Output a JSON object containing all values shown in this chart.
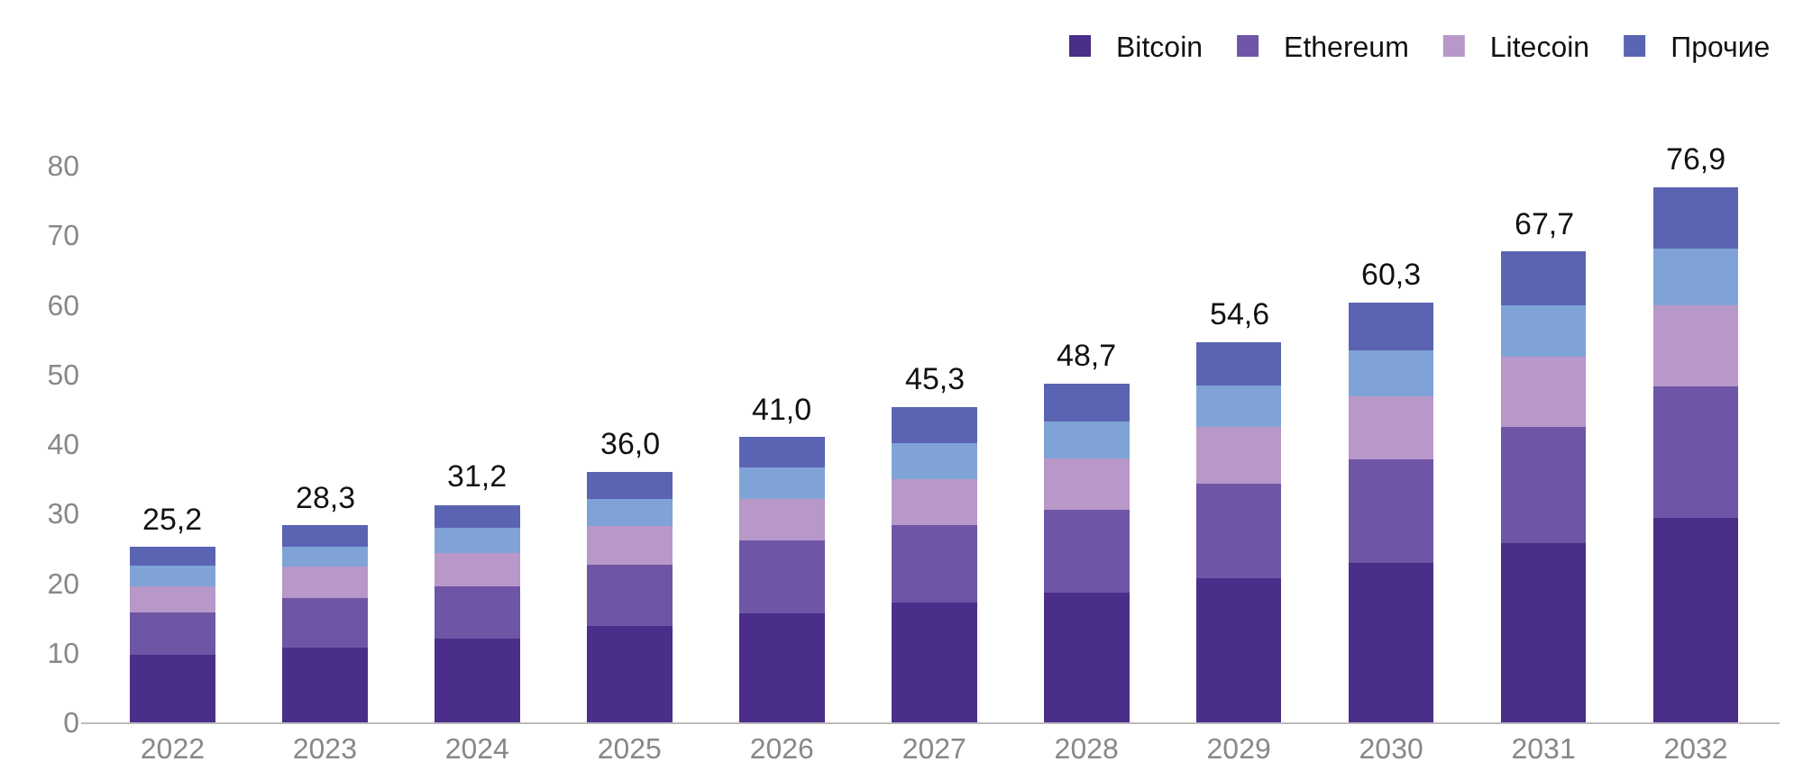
{
  "chart_data": {
    "type": "bar",
    "stacked": true,
    "categories": [
      "2022",
      "2023",
      "2024",
      "2025",
      "2026",
      "2027",
      "2028",
      "2029",
      "2030",
      "2031",
      "2032"
    ],
    "series": [
      {
        "name": "Bitcoin",
        "color": "#4b2d8a",
        "values": [
          9.7,
          10.8,
          12.0,
          13.9,
          15.7,
          17.2,
          18.6,
          20.7,
          22.9,
          25.7,
          29.4
        ]
      },
      {
        "name": "Ethereum",
        "color": "#6e55a6",
        "values": [
          6.1,
          7.1,
          7.6,
          8.8,
          10.4,
          11.1,
          11.9,
          13.6,
          14.9,
          16.8,
          18.9
        ]
      },
      {
        "name": "Litecoin",
        "color": "#b897c9",
        "values": [
          3.8,
          4.5,
          4.8,
          5.5,
          6.0,
          6.6,
          7.4,
          8.1,
          9.0,
          10.1,
          11.6
        ]
      },
      {
        "color": "#7fa3d6",
        "values": [
          2.9,
          2.9,
          3.6,
          3.9,
          4.5,
          5.2,
          5.3,
          6.0,
          6.7,
          7.4,
          8.2
        ]
      },
      {
        "name": "Прочие",
        "color": "#5a64b3",
        "values": [
          2.7,
          3.0,
          3.2,
          3.9,
          4.4,
          5.2,
          5.5,
          6.2,
          6.8,
          7.7,
          8.8
        ]
      }
    ],
    "totals": [
      "25,2",
      "28,3",
      "31,2",
      "36,0",
      "41,0",
      "45,3",
      "48,7",
      "54,6",
      "60,3",
      "67,7",
      "76,9"
    ],
    "ylim": [
      0,
      80
    ],
    "yticks": [
      0,
      10,
      20,
      30,
      40,
      50,
      60,
      70,
      80
    ],
    "legend": "top right"
  }
}
